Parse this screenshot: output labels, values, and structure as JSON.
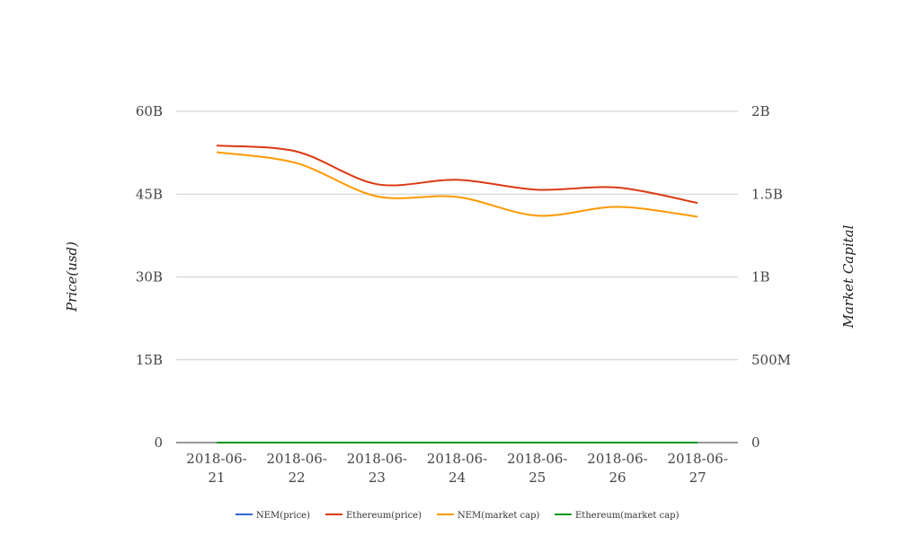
{
  "chart_data": {
    "type": "line",
    "title": "",
    "xlabel": "",
    "ylabel_left": "Price(usd)",
    "ylabel_right": "Market Capital",
    "categories": [
      "2018-06-21",
      "2018-06-22",
      "2018-06-23",
      "2018-06-24",
      "2018-06-25",
      "2018-06-26",
      "2018-06-27"
    ],
    "y_left": {
      "lim": [
        0,
        60000000000
      ],
      "ticks": [
        0,
        15000000000,
        30000000000,
        45000000000,
        60000000000
      ],
      "tick_labels": [
        "0",
        "15B",
        "30B",
        "45B",
        "60B"
      ]
    },
    "y_right": {
      "lim": [
        0,
        2000000000
      ],
      "ticks": [
        0,
        500000000,
        1000000000,
        1500000000,
        2000000000
      ],
      "tick_labels": [
        "0",
        "500M",
        "1B",
        "1.5B",
        "2B"
      ]
    },
    "grid": true,
    "legend_position": "bottom",
    "series": [
      {
        "name": "NEM(price)",
        "axis": "left",
        "color": "#3366cc",
        "values": [
          0.19,
          0.18,
          0.17,
          0.17,
          0.16,
          0.16,
          0.15
        ]
      },
      {
        "name": "Ethereum(price)",
        "axis": "left",
        "color": "#dc3912",
        "values": [
          53800000000,
          52700000000,
          46800000000,
          47600000000,
          45800000000,
          46200000000,
          43400000000
        ]
      },
      {
        "name": "NEM(market cap)",
        "axis": "left",
        "color": "#ff9900",
        "values": [
          52600000000,
          50600000000,
          44600000000,
          44500000000,
          41100000000,
          42700000000,
          40900000000
        ]
      },
      {
        "name": "Ethereum(market cap)",
        "axis": "right",
        "color": "#109618",
        "values": [
          530,
          520,
          470,
          475,
          455,
          460,
          435
        ]
      }
    ]
  }
}
